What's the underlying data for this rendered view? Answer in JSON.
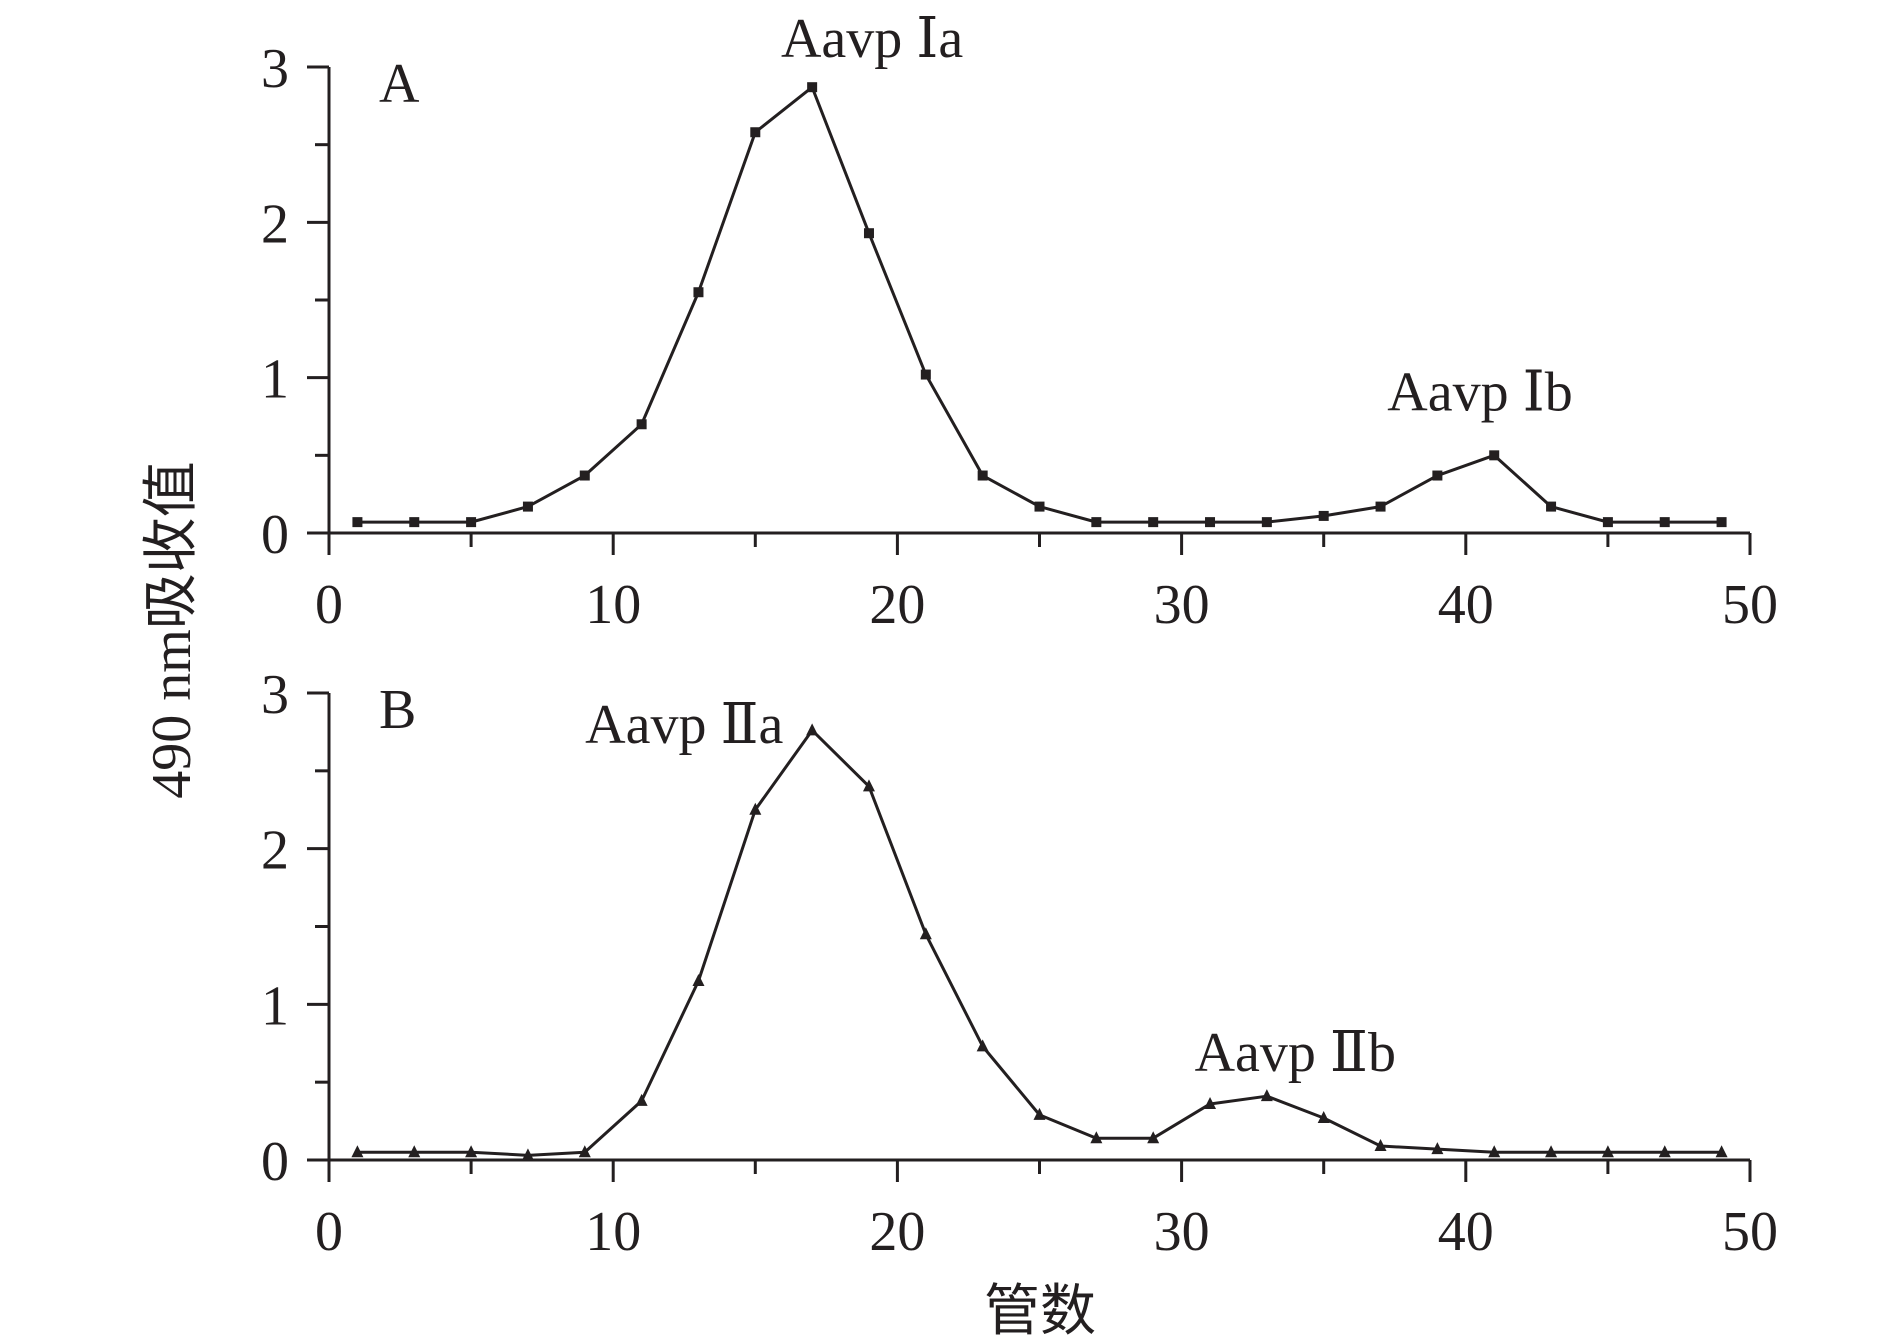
{
  "chart_data": [
    {
      "type": "line",
      "panel_label": "A",
      "x": [
        1,
        3,
        5,
        7,
        9,
        11,
        13,
        15,
        17,
        19,
        21,
        23,
        25,
        27,
        29,
        31,
        33,
        35,
        37,
        39,
        41,
        43,
        45,
        47,
        49
      ],
      "series": [
        {
          "name": "A",
          "marker": "square",
          "values": [
            0.07,
            0.07,
            0.07,
            0.17,
            0.37,
            0.7,
            1.55,
            2.58,
            2.87,
            1.93,
            1.02,
            0.37,
            0.17,
            0.07,
            0.07,
            0.07,
            0.07,
            0.11,
            0.17,
            0.37,
            0.5,
            0.17,
            0.07,
            0.07,
            0.07
          ]
        }
      ],
      "annotations": [
        {
          "text": "Aavp Ⅰa",
          "x": 17
        },
        {
          "text": "Aavp Ⅰb",
          "x": 41
        }
      ],
      "xlim": [
        0,
        50
      ],
      "ylim": [
        0,
        3
      ],
      "xticks": [
        "0",
        "10",
        "20",
        "30",
        "40",
        "50"
      ],
      "yticks": [
        "0",
        "1",
        "2",
        "3"
      ]
    },
    {
      "type": "line",
      "panel_label": "B",
      "x": [
        1,
        3,
        5,
        7,
        9,
        11,
        13,
        15,
        17,
        19,
        21,
        23,
        25,
        27,
        29,
        31,
        33,
        35,
        37,
        39,
        41,
        43,
        45,
        47,
        49
      ],
      "series": [
        {
          "name": "B",
          "marker": "triangle",
          "values": [
            0.05,
            0.05,
            0.05,
            0.03,
            0.05,
            0.38,
            1.15,
            2.25,
            2.76,
            2.4,
            1.45,
            0.73,
            0.29,
            0.14,
            0.14,
            0.36,
            0.41,
            0.27,
            0.09,
            0.07,
            0.05,
            0.05,
            0.05,
            0.05,
            0.05
          ]
        }
      ],
      "annotations": [
        {
          "text": "Aavp Ⅱa",
          "x": 13
        },
        {
          "text": "Aavp Ⅱb",
          "x": 33
        }
      ],
      "xlim": [
        0,
        50
      ],
      "ylim": [
        0,
        3
      ],
      "xticks": [
        "0",
        "10",
        "20",
        "30",
        "40",
        "50"
      ],
      "yticks": [
        "0",
        "1",
        "2",
        "3"
      ]
    }
  ],
  "ylabel": "490 nm吸收值",
  "xlabel": "管数",
  "colors": {
    "line": "#231f20"
  }
}
